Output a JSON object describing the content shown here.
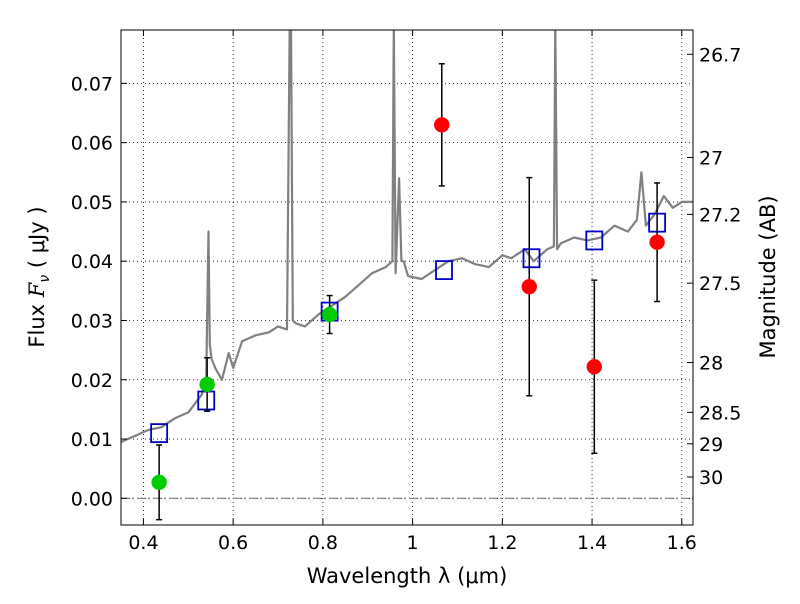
{
  "chart_data": {
    "type": "scatter",
    "xlabel": "Wavelength  λ (μm)",
    "ylabel": "Flux  F_ν  ( μJy )",
    "ylabel_parts": {
      "pre": "Flux  ",
      "var": "F",
      "sub": "ν",
      "post": "  ( μJy )"
    },
    "y2label": "Magnitude (AB)",
    "xlim": [
      0.35,
      1.625
    ],
    "ylim": [
      -0.0045,
      0.079
    ],
    "grid": true,
    "x_ticks": [
      {
        "value": 0.4,
        "label": "0.4"
      },
      {
        "value": 0.6,
        "label": "0.6"
      },
      {
        "value": 0.8,
        "label": "0.8"
      },
      {
        "value": 1.0,
        "label": "1"
      },
      {
        "value": 1.2,
        "label": "1.2"
      },
      {
        "value": 1.4,
        "label": "1.4"
      },
      {
        "value": 1.6,
        "label": "1.6"
      }
    ],
    "y_ticks": [
      {
        "value": 0.0,
        "label": "0.00"
      },
      {
        "value": 0.01,
        "label": "0.01"
      },
      {
        "value": 0.02,
        "label": "0.02"
      },
      {
        "value": 0.03,
        "label": "0.03"
      },
      {
        "value": 0.04,
        "label": "0.04"
      },
      {
        "value": 0.05,
        "label": "0.05"
      },
      {
        "value": 0.06,
        "label": "0.06"
      },
      {
        "value": 0.07,
        "label": "0.07"
      }
    ],
    "mag_ticks": [
      {
        "flux": 0.0749,
        "label": "26.7"
      },
      {
        "flux": 0.0575,
        "label": "27"
      },
      {
        "flux": 0.0479,
        "label": "27.2"
      },
      {
        "flux": 0.0363,
        "label": "27.5"
      },
      {
        "flux": 0.0229,
        "label": "28"
      },
      {
        "flux": 0.0145,
        "label": "28.5"
      },
      {
        "flux": 0.0092,
        "label": "29"
      },
      {
        "flux": 0.0036,
        "label": "30"
      }
    ],
    "template_spectrum": {
      "color": "#808080",
      "x": [
        0.35,
        0.38,
        0.41,
        0.44,
        0.47,
        0.5,
        0.53,
        0.54,
        0.545,
        0.548,
        0.552,
        0.56,
        0.575,
        0.59,
        0.6,
        0.62,
        0.65,
        0.68,
        0.7,
        0.72,
        0.726,
        0.729,
        0.733,
        0.74,
        0.76,
        0.79,
        0.82,
        0.85,
        0.88,
        0.91,
        0.94,
        0.955,
        0.958,
        0.962,
        0.97,
        0.975,
        0.98,
        0.99,
        1.02,
        1.05,
        1.08,
        1.11,
        1.14,
        1.17,
        1.2,
        1.22,
        1.25,
        1.27,
        1.3,
        1.315,
        1.318,
        1.322,
        1.33,
        1.36,
        1.39,
        1.42,
        1.45,
        1.48,
        1.5,
        1.51,
        1.52,
        1.54,
        1.56,
        1.58,
        1.6,
        1.625
      ],
      "y": [
        0.0095,
        0.0105,
        0.0115,
        0.012,
        0.0135,
        0.0145,
        0.0175,
        0.02,
        0.045,
        0.026,
        0.0235,
        0.022,
        0.02,
        0.0245,
        0.022,
        0.0265,
        0.0275,
        0.028,
        0.029,
        0.0285,
        0.08,
        0.08,
        0.03,
        0.0295,
        0.029,
        0.031,
        0.0325,
        0.034,
        0.036,
        0.038,
        0.039,
        0.04,
        0.08,
        0.038,
        0.054,
        0.04,
        0.04,
        0.0375,
        0.037,
        0.0385,
        0.04,
        0.0405,
        0.0395,
        0.039,
        0.041,
        0.0405,
        0.042,
        0.04,
        0.042,
        0.0425,
        0.08,
        0.042,
        0.043,
        0.044,
        0.0435,
        0.044,
        0.046,
        0.045,
        0.047,
        0.055,
        0.046,
        0.048,
        0.051,
        0.049,
        0.05,
        0.05
      ]
    },
    "series": [
      {
        "marker": "square-open",
        "color": "#0000cc",
        "x": [
          0.435,
          0.54,
          0.815,
          1.07,
          1.265,
          1.405,
          1.545
        ],
        "y": [
          0.011,
          0.0165,
          0.0315,
          0.0385,
          0.0405,
          0.0435,
          0.0465
        ]
      },
      {
        "marker": "circle",
        "color": "#00cc00",
        "x": [
          0.435,
          0.542,
          0.815
        ],
        "y": [
          0.0027,
          0.0192,
          0.031
        ],
        "yerr": [
          0.0063,
          0.0045,
          0.0032
        ]
      },
      {
        "marker": "circle",
        "color": "#ff0000",
        "x": [
          1.065,
          1.26,
          1.405,
          1.545
        ],
        "y": [
          0.063,
          0.0357,
          0.0222,
          0.0432
        ],
        "yerr": [
          0.0103,
          0.0184,
          0.0146,
          0.01
        ]
      }
    ]
  }
}
